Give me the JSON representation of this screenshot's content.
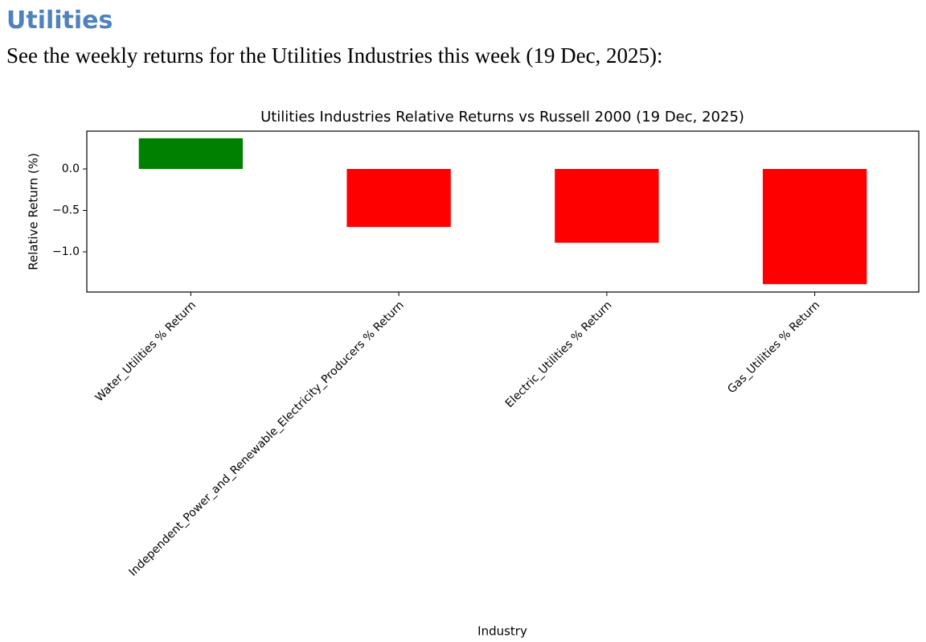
{
  "heading": "Utilities",
  "intro": "See the weekly returns for the Utilities Industries this week (19 Dec, 2025):",
  "chart_data": {
    "type": "bar",
    "title": "Utilities Industries Relative Returns vs Russell 2000 (19 Dec, 2025)",
    "x_label": "Industry",
    "y_label": "Relative Return (%)",
    "categories": [
      "Water_Utilities % Return",
      "Independent_Power_and_Renewable_Electricity_Producers % Return",
      "Electric_Utilities % Return",
      "Gas_Utilities % Return"
    ],
    "values": [
      0.37,
      -0.7,
      -0.89,
      -1.39
    ],
    "colors": [
      "#008000",
      "#ff0000",
      "#ff0000",
      "#ff0000"
    ],
    "ylim": [
      -1.485,
      0.456
    ],
    "yticks": [
      {
        "value": -1.0,
        "label": "−1.0"
      },
      {
        "value": -0.5,
        "label": "−0.5"
      },
      {
        "value": 0.0,
        "label": "0.0"
      }
    ],
    "grid": false
  }
}
